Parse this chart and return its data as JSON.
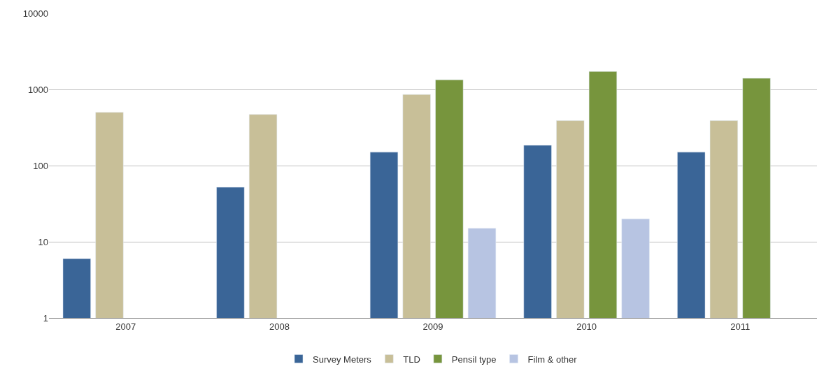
{
  "chart_data": {
    "type": "bar",
    "categories": [
      "2007",
      "2008",
      "2009",
      "2010",
      "2011"
    ],
    "series": [
      {
        "name": "Survey Meters",
        "color": "#3a6597",
        "values": [
          6,
          52,
          150,
          185,
          150
        ]
      },
      {
        "name": "TLD",
        "color": "#c8bf98",
        "values": [
          500,
          470,
          860,
          390,
          390
        ]
      },
      {
        "name": "Pensil type",
        "color": "#77953d",
        "values": [
          null,
          null,
          1340,
          1720,
          1400
        ]
      },
      {
        "name": "Film & other",
        "color": "#b7c4e2",
        "values": [
          null,
          null,
          15,
          20,
          null
        ]
      }
    ],
    "log": "y",
    "ylim": [
      1,
      10000
    ],
    "yticks": [
      1,
      10,
      100,
      1000,
      10000
    ],
    "grid": "y",
    "legend": "bottom"
  }
}
